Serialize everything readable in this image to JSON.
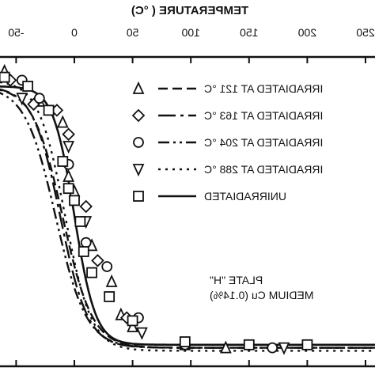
{
  "chart_data": {
    "type": "line",
    "xlabel": "TEMPERATURE ( °C)",
    "ylabel": "",
    "xlim": [
      -70,
      290
    ],
    "ylim": [
      0,
      100
    ],
    "x_ticks": [
      "-50",
      "0",
      "50",
      "100",
      "150",
      "200",
      "250"
    ],
    "x_tick_values": [
      -50,
      0,
      50,
      100,
      150,
      200,
      250
    ],
    "mirrored": true,
    "legend_placement": "right",
    "note_lines": [
      "PLATE \"H\"",
      "MEDIUM Cu (0.14%)"
    ],
    "series": [
      {
        "name": "IRRADIATED AT 121 °C",
        "marker": "triangle-up",
        "dash": "12 6",
        "curve": {
          "T0": -10,
          "C": 28,
          "upper": 90,
          "lower": 3
        },
        "points": [
          [
            -60,
            95
          ],
          [
            -30,
            85
          ],
          [
            -10,
            78
          ],
          [
            -5,
            60
          ],
          [
            0,
            55
          ],
          [
            15,
            37
          ],
          [
            32,
            25
          ],
          [
            40,
            14
          ],
          [
            50,
            10
          ],
          [
            95,
            4
          ],
          [
            130,
            3
          ]
        ]
      },
      {
        "name": "IRRADIATED AT 163 °C",
        "marker": "diamond",
        "dash": "22 6 4 6",
        "curve": {
          "T0": -12,
          "C": 26,
          "upper": 90,
          "lower": 3
        },
        "points": [
          [
            -55,
            92
          ],
          [
            -35,
            84
          ],
          [
            -15,
            82
          ],
          [
            -5,
            74
          ],
          [
            10,
            50
          ],
          [
            20,
            32
          ],
          [
            45,
            13
          ],
          [
            95,
            4
          ]
        ]
      },
      {
        "name": "IRRADIATED AT 204 °C",
        "marker": "circle",
        "dash": "14 5 3 5 3 5",
        "curve": {
          "T0": -16,
          "C": 29,
          "upper": 90,
          "lower": 3
        },
        "points": [
          [
            -45,
            92
          ],
          [
            -30,
            86
          ],
          [
            -5,
            64
          ],
          [
            10,
            38
          ],
          [
            28,
            30
          ],
          [
            55,
            13
          ],
          [
            95,
            4
          ],
          [
            170,
            3
          ]
        ]
      },
      {
        "name": "IRRADIATED AT 288 °C",
        "marker": "triangle-down",
        "dash": "3 6",
        "curve": {
          "T0": -8,
          "C": 25,
          "upper": 92,
          "lower": 2
        },
        "points": [
          [
            -45,
            86
          ],
          [
            -5,
            70
          ],
          [
            10,
            45
          ],
          [
            58,
            8
          ],
          [
            180,
            3
          ]
        ]
      },
      {
        "name": "UNIRRADIATED",
        "marker": "square",
        "dash": "",
        "curve": {
          "T0": 0,
          "C": 20,
          "upper": 90,
          "lower": 4
        },
        "points": [
          [
            -60,
            93
          ],
          [
            -40,
            90
          ],
          [
            -22,
            82
          ],
          [
            -10,
            65
          ],
          [
            -5,
            56
          ],
          [
            0,
            52
          ],
          [
            5,
            45
          ],
          [
            8,
            35
          ],
          [
            15,
            28
          ],
          [
            30,
            20
          ],
          [
            50,
            12
          ],
          [
            95,
            5
          ],
          [
            150,
            4
          ],
          [
            200,
            4
          ]
        ]
      }
    ]
  }
}
